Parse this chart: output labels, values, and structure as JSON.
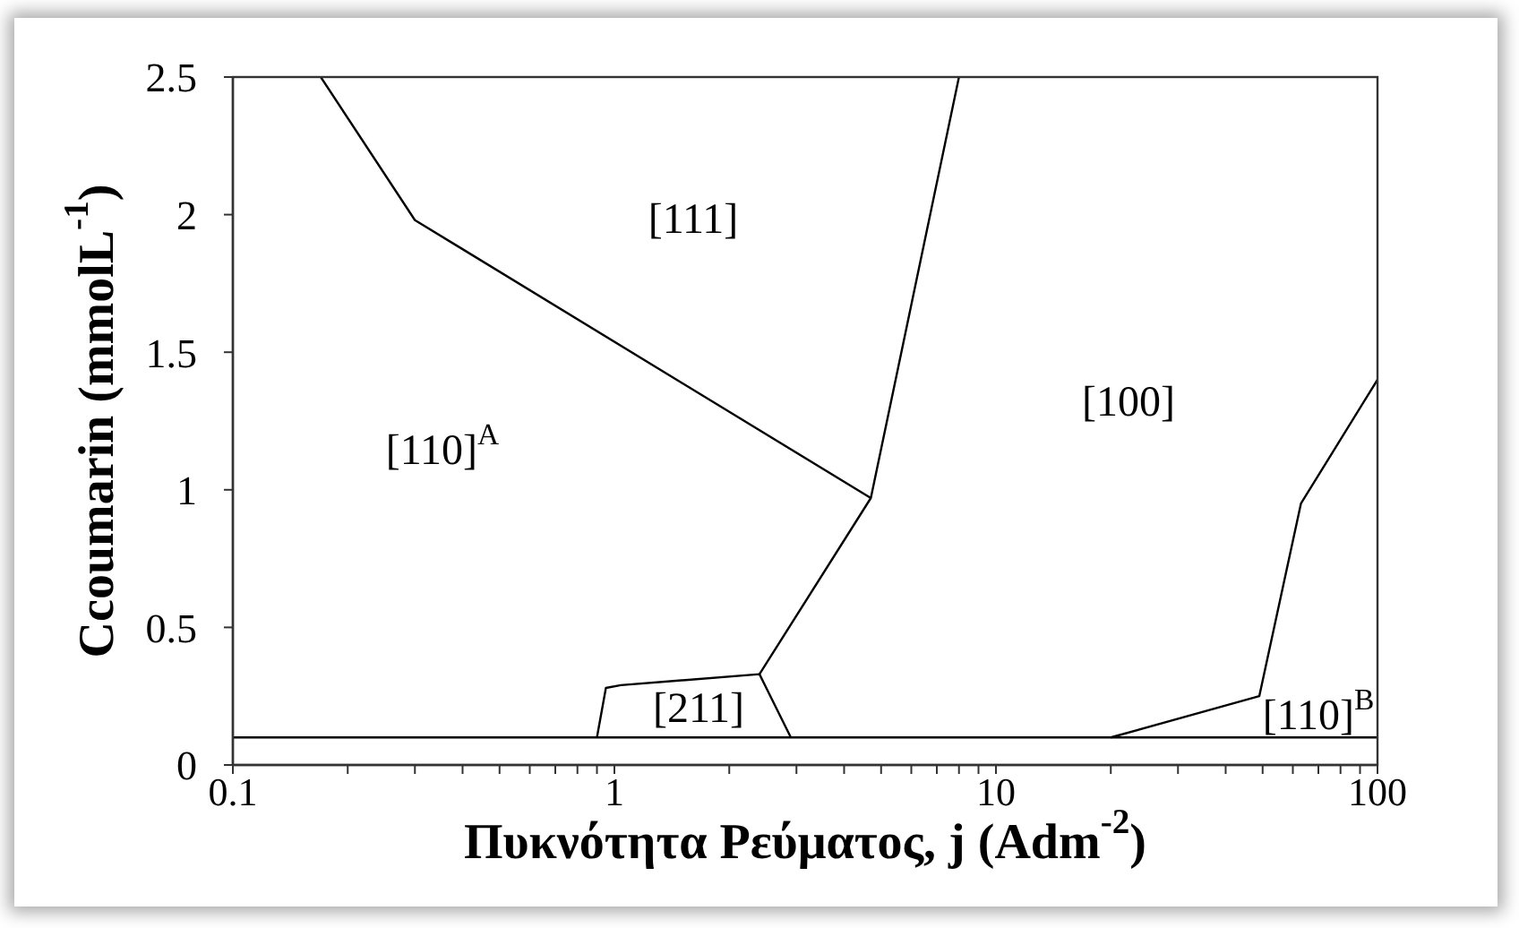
{
  "chart_data": {
    "type": "line",
    "xlabel": "Πυκνότητα Ρεύματος, j (Adm$^{-2}$)",
    "ylabel": "Ccoumarin (mmolL$^{-1}$)",
    "log": "x",
    "marker": "none",
    "xlim": [
      0.1,
      100
    ],
    "xticks": [
      0.1,
      {
        "value": 0.2,
        "label": null
      },
      {
        "value": 0.3,
        "label": null
      },
      {
        "value": 0.4,
        "label": null
      },
      {
        "value": 0.5,
        "label": null
      },
      {
        "value": 0.6,
        "label": null
      },
      {
        "value": 0.7,
        "label": null
      },
      {
        "value": 0.8,
        "label": null
      },
      {
        "value": 0.9,
        "label": null
      },
      1,
      {
        "value": 2,
        "label": null
      },
      {
        "value": 3,
        "label": null
      },
      {
        "value": 4,
        "label": null
      },
      {
        "value": 5,
        "label": null
      },
      {
        "value": 6,
        "label": null
      },
      {
        "value": 7,
        "label": null
      },
      {
        "value": 8,
        "label": null
      },
      {
        "value": 9,
        "label": null
      },
      10,
      {
        "value": 20,
        "label": null
      },
      {
        "value": 30,
        "label": null
      },
      {
        "value": 40,
        "label": null
      },
      {
        "value": 50,
        "label": null
      },
      {
        "value": 60,
        "label": null
      },
      {
        "value": 70,
        "label": null
      },
      {
        "value": 80,
        "label": null
      },
      {
        "value": 90,
        "label": null
      },
      100
    ],
    "ylim": [
      0,
      2.5
    ],
    "yticks": [
      0,
      0.5,
      1,
      1.5,
      2,
      2.5
    ],
    "series": [
      {
        "color": "#000000",
        "x": [
          0.17,
          0.3,
          4.7
        ],
        "values": [
          2.5,
          1.98,
          0.97
        ]
      },
      {
        "color": "#000000",
        "x": [
          2.4,
          4.7,
          8
        ],
        "values": [
          0.33,
          0.97,
          2.5
        ]
      },
      {
        "color": "#000000",
        "x": [
          0.9,
          0.95,
          1.04,
          2.4,
          2.9
        ],
        "values": [
          0.1,
          0.28,
          0.29,
          0.33,
          0.1
        ]
      },
      {
        "color": "#000000",
        "x": [
          20,
          49,
          63,
          100
        ],
        "values": [
          0.1,
          0.25,
          0.95,
          1.4
        ]
      }
    ],
    "ref_lines": [
      {
        "axis": "y",
        "value": 0.1,
        "color": "#000000"
      }
    ],
    "annotations": [
      "[111]",
      "[110]$^{A}$",
      "[100]",
      "[211]",
      "[110]$^{B}$"
    ]
  }
}
